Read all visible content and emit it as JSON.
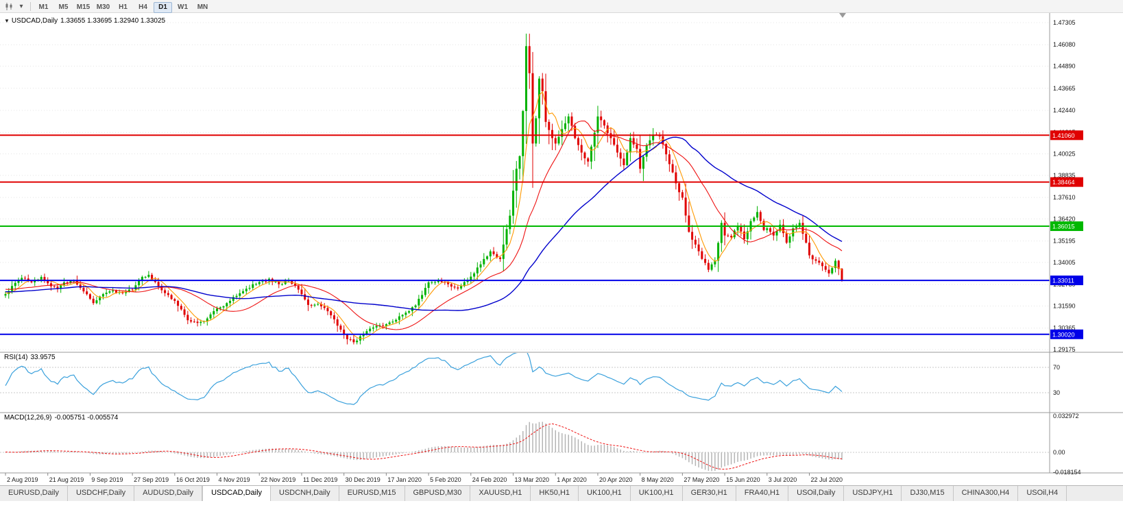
{
  "toolbar": {
    "icons": {
      "symbol_marker": "▼",
      "dropdown_caret": "▾"
    },
    "timeframes": [
      {
        "label": "M1",
        "active": false
      },
      {
        "label": "M5",
        "active": false
      },
      {
        "label": "M15",
        "active": false
      },
      {
        "label": "M30",
        "active": false
      },
      {
        "label": "H1",
        "active": false
      },
      {
        "label": "H4",
        "active": false
      },
      {
        "label": "D1",
        "active": true
      },
      {
        "label": "W1",
        "active": false
      },
      {
        "label": "MN",
        "active": false
      }
    ]
  },
  "chart": {
    "title": {
      "symbol": "USDCAD,Daily",
      "ohlc": "1.33655 1.33695 1.32940 1.33025"
    }
  },
  "indicators": {
    "rsi": {
      "label": "RSI(14)",
      "value": "33.9575",
      "axis": [
        "70",
        "30"
      ]
    },
    "macd": {
      "label": "MACD(12,26,9)",
      "values": "-0.005751 -0.005574",
      "axis": [
        "0.032972",
        "0.00",
        "-0.018154"
      ]
    }
  },
  "axes": {
    "price_labels": [
      "1.47305",
      "1.46080",
      "1.44890",
      "1.43665",
      "1.42440",
      "1.41215",
      "1.40025",
      "1.38835",
      "1.37610",
      "1.36420",
      "1.35195",
      "1.34005",
      "1.32780",
      "1.31590",
      "1.30365",
      "1.29175"
    ],
    "date_labels": [
      "2 Aug 2019",
      "21 Aug 2019",
      "9 Sep 2019",
      "27 Sep 2019",
      "16 Oct 2019",
      "4 Nov 2019",
      "22 Nov 2019",
      "11 Dec 2019",
      "30 Dec 2019",
      "17 Jan 2020",
      "5 Feb 2020",
      "24 Feb 2020",
      "13 Mar 2020",
      "1 Apr 2020",
      "20 Apr 2020",
      "8 May 2020",
      "27 May 2020",
      "15 Jun 2020",
      "3 Jul 2020",
      "22 Jul 2020"
    ]
  },
  "tabs": [
    {
      "label": "EURUSD,Daily",
      "active": false
    },
    {
      "label": "USDCHF,Daily",
      "active": false
    },
    {
      "label": "AUDUSD,Daily",
      "active": false
    },
    {
      "label": "USDCAD,Daily",
      "active": true
    },
    {
      "label": "USDCNH,Daily",
      "active": false
    },
    {
      "label": "EURUSD,M15",
      "active": false
    },
    {
      "label": "GBPUSD,M30",
      "active": false
    },
    {
      "label": "XAUUSD,H1",
      "active": false
    },
    {
      "label": "HK50,H1",
      "active": false
    },
    {
      "label": "UK100,H1",
      "active": false
    },
    {
      "label": "UK100,H1",
      "active": false
    },
    {
      "label": "GER30,H1",
      "active": false
    },
    {
      "label": "FRA40,H1",
      "active": false
    },
    {
      "label": "USOil,Daily",
      "active": false
    },
    {
      "label": "USDJPY,H1",
      "active": false
    },
    {
      "label": "DJ30,M15",
      "active": false
    },
    {
      "label": "CHINA300,H4",
      "active": false
    },
    {
      "label": "USOil,H4",
      "active": false
    }
  ],
  "colors": {
    "candle_up": "#00b200",
    "candle_down": "#e00000",
    "rsi_line": "#39a0dc",
    "macd_hist": "#b4b4b4",
    "macd_signal": "#ee1111",
    "grid": "#e4e4e4",
    "panel_border": "#9a9a9a",
    "axis_text": "#111111"
  },
  "chart_data": {
    "type": "candlestick",
    "symbol": "USDCAD",
    "timeframe": "Daily",
    "ohlc_current": {
      "open": 1.33655,
      "high": 1.33695,
      "low": 1.3294,
      "close": 1.33025
    },
    "price_range": [
      1.29175,
      1.47305
    ],
    "bars_total": 258,
    "bars_per_x_label": 13,
    "horizontal_lines": [
      {
        "price": 1.4106,
        "label": "1.41060",
        "color": "#e00000"
      },
      {
        "price": 1.38464,
        "label": "1.38464",
        "color": "#e00000"
      },
      {
        "price": 1.36015,
        "label": "1.36015",
        "color": "#00b800"
      },
      {
        "price": 1.33011,
        "label": "1.33011",
        "color": "#0000e8"
      },
      {
        "price": 1.3002,
        "label": "1.30020",
        "color": "#0000e8"
      }
    ],
    "moving_averages": [
      {
        "period": 6,
        "color": "#ff9900"
      },
      {
        "period": 20,
        "color": "#ee1111"
      },
      {
        "period": 50,
        "color": "#0000cc"
      }
    ],
    "rsi": {
      "period": 14,
      "current": 33.9575,
      "levels": [
        70,
        30
      ]
    },
    "macd": {
      "fast": 12,
      "slow": 26,
      "signal": 9,
      "current": -0.005751,
      "current_signal": -0.005574,
      "axis_max": 0.032972,
      "axis_min": -0.018154
    },
    "close_anchors": [
      [
        0,
        1.3225
      ],
      [
        2,
        1.327
      ],
      [
        5,
        1.3315
      ],
      [
        8,
        1.329
      ],
      [
        11,
        1.332
      ],
      [
        13,
        1.3285
      ],
      [
        16,
        1.3255
      ],
      [
        18,
        1.329
      ],
      [
        21,
        1.33
      ],
      [
        24,
        1.324
      ],
      [
        27,
        1.3175
      ],
      [
        30,
        1.3225
      ],
      [
        33,
        1.3245
      ],
      [
        36,
        1.323
      ],
      [
        39,
        1.325
      ],
      [
        42,
        1.332
      ],
      [
        44,
        1.3332
      ],
      [
        47,
        1.327
      ],
      [
        50,
        1.322
      ],
      [
        53,
        1.316
      ],
      [
        56,
        1.308
      ],
      [
        59,
        1.3065
      ],
      [
        62,
        1.309
      ],
      [
        65,
        1.3145
      ],
      [
        68,
        1.3175
      ],
      [
        71,
        1.3215
      ],
      [
        74,
        1.3255
      ],
      [
        78,
        1.3292
      ],
      [
        81,
        1.331
      ],
      [
        84,
        1.328
      ],
      [
        87,
        1.33
      ],
      [
        90,
        1.325
      ],
      [
        93,
        1.3165
      ],
      [
        96,
        1.317
      ],
      [
        99,
        1.313
      ],
      [
        102,
        1.305
      ],
      [
        105,
        1.2975
      ],
      [
        107,
        1.2958
      ],
      [
        110,
        1.3005
      ],
      [
        113,
        1.304
      ],
      [
        117,
        1.3058
      ],
      [
        120,
        1.3082
      ],
      [
        123,
        1.3122
      ],
      [
        126,
        1.3162
      ],
      [
        130,
        1.329
      ],
      [
        133,
        1.3302
      ],
      [
        136,
        1.328
      ],
      [
        139,
        1.3256
      ],
      [
        141,
        1.3292
      ],
      [
        143,
        1.3322
      ],
      [
        146,
        1.339
      ],
      [
        149,
        1.3462
      ],
      [
        152,
        1.342
      ],
      [
        155,
        1.366
      ],
      [
        157,
        1.392
      ],
      [
        158,
        1.399
      ],
      [
        159,
        1.424
      ],
      [
        160,
        1.46
      ],
      [
        161,
        1.445
      ],
      [
        162,
        1.406
      ],
      [
        163,
        1.42
      ],
      [
        164,
        1.442
      ],
      [
        165,
        1.435
      ],
      [
        166,
        1.418
      ],
      [
        168,
        1.409
      ],
      [
        169,
        1.406
      ],
      [
        171,
        1.414
      ],
      [
        173,
        1.421
      ],
      [
        175,
        1.409
      ],
      [
        177,
        1.401
      ],
      [
        179,
        1.396
      ],
      [
        181,
        1.412
      ],
      [
        182,
        1.421
      ],
      [
        184,
        1.416
      ],
      [
        186,
        1.409
      ],
      [
        188,
        1.401
      ],
      [
        190,
        1.394
      ],
      [
        192,
        1.409
      ],
      [
        194,
        1.403
      ],
      [
        195,
        1.392
      ],
      [
        197,
        1.405
      ],
      [
        199,
        1.411
      ],
      [
        201,
        1.41
      ],
      [
        203,
        1.4
      ],
      [
        205,
        1.39
      ],
      [
        207,
        1.379
      ],
      [
        208,
        1.376
      ],
      [
        210,
        1.357
      ],
      [
        212,
        1.35
      ],
      [
        214,
        1.342
      ],
      [
        216,
        1.336
      ],
      [
        218,
        1.341
      ],
      [
        220,
        1.362
      ],
      [
        221,
        1.355
      ],
      [
        223,
        1.354
      ],
      [
        225,
        1.36
      ],
      [
        227,
        1.353
      ],
      [
        229,
        1.363
      ],
      [
        231,
        1.368
      ],
      [
        233,
        1.358
      ],
      [
        234,
        1.359
      ],
      [
        236,
        1.355
      ],
      [
        238,
        1.361
      ],
      [
        240,
        1.351
      ],
      [
        242,
        1.359
      ],
      [
        244,
        1.362
      ],
      [
        246,
        1.351
      ],
      [
        247,
        1.344
      ],
      [
        249,
        1.341
      ],
      [
        251,
        1.338
      ],
      [
        253,
        1.334
      ],
      [
        255,
        1.341
      ],
      [
        256,
        1.33655
      ],
      [
        257,
        1.33025
      ]
    ]
  }
}
